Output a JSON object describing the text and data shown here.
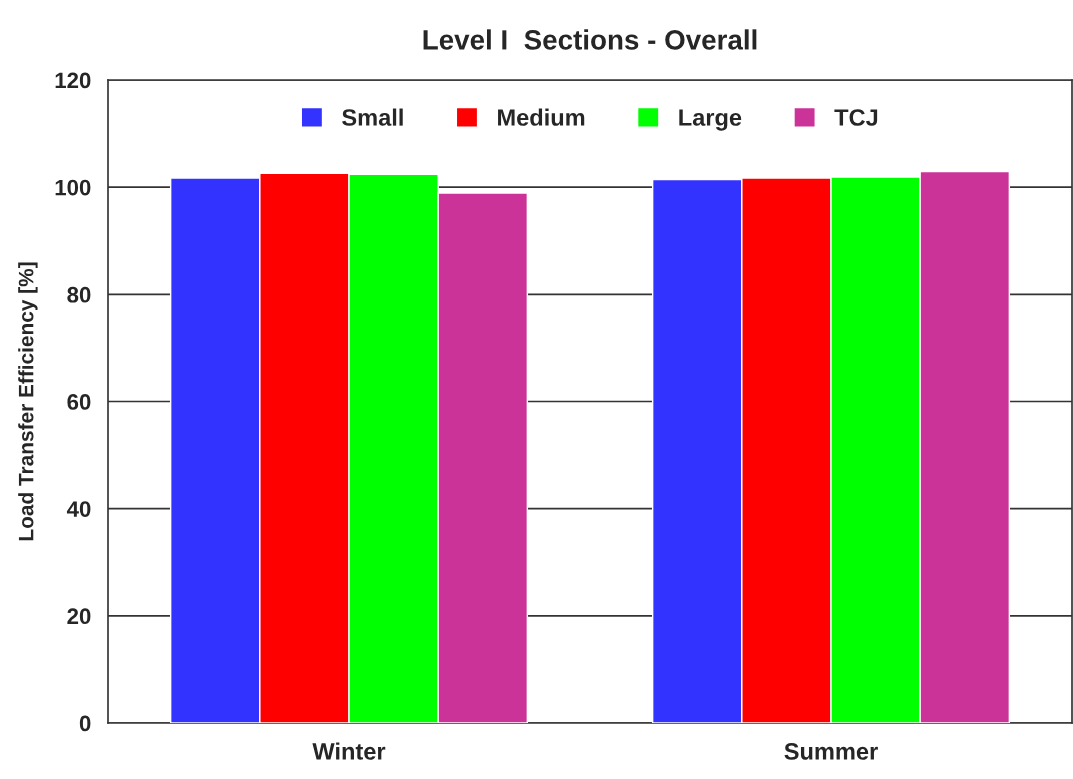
{
  "chart_data": {
    "type": "bar",
    "title": "Level I  Sections - Overall",
    "ylabel": "Load Transfer Efficiency [%]",
    "categories": [
      "Winter",
      "Summer"
    ],
    "series": [
      {
        "name": "Small",
        "color": "#3333ff",
        "values": [
          101.7,
          101.4
        ]
      },
      {
        "name": "Medium",
        "color": "#ff0000",
        "values": [
          102.6,
          101.7
        ]
      },
      {
        "name": "Large",
        "color": "#00ff00",
        "values": [
          102.4,
          101.9
        ]
      },
      {
        "name": "TCJ",
        "color": "#cc3399",
        "values": [
          98.9,
          102.9
        ]
      }
    ],
    "ylim": [
      0,
      120
    ],
    "yticks": [
      0,
      20,
      40,
      60,
      80,
      100,
      120
    ],
    "grid": "y",
    "legend": "top"
  }
}
